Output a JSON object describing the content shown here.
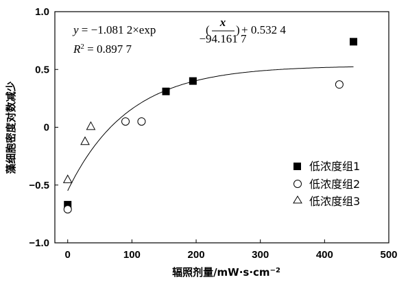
{
  "chart_data": {
    "type": "scatter",
    "xlabel": "辐照剂量/mW·s·cm",
    "xlabel_sup": "−2",
    "ylabel": "藻细胞密度对数减少",
    "xlim": [
      -20,
      500
    ],
    "ylim": [
      -1.0,
      1.0
    ],
    "xticks": [
      0,
      100,
      200,
      300,
      400,
      500
    ],
    "yticks": [
      -1.0,
      -0.5,
      0,
      0.5,
      1.0
    ],
    "xtick_labels": [
      "0",
      "100",
      "200",
      "300",
      "400",
      "500"
    ],
    "ytick_labels": [
      "−1.0",
      "−0.5",
      "0",
      "0.5",
      "1.0"
    ],
    "grid": false,
    "legend_position": "bottom-right",
    "series": [
      {
        "name": "低浓度组1",
        "marker": "square-filled",
        "x": [
          0,
          153,
          195,
          445
        ],
        "y": [
          -0.67,
          0.31,
          0.4,
          0.74
        ]
      },
      {
        "name": "低浓度组2",
        "marker": "circle-open",
        "x": [
          0,
          90,
          115,
          423
        ],
        "y": [
          -0.71,
          0.05,
          0.05,
          0.37
        ]
      },
      {
        "name": "低浓度组3",
        "marker": "triangle-open",
        "x": [
          0,
          27,
          36
        ],
        "y": [
          -0.45,
          -0.12,
          0.01
        ]
      }
    ],
    "fit": {
      "a": -1.0812,
      "t": -94.1617,
      "c": 0.5324,
      "x_range": [
        0,
        445
      ],
      "equation": {
        "y": "y",
        "eq_mid": " = −1.081 2×exp ",
        "num": "x",
        "den": "−94.161 7",
        "tail": " + 0.532 4",
        "r2_r": "R",
        "r2_sup": "2",
        "r2_val": " = 0.897 7"
      }
    }
  }
}
